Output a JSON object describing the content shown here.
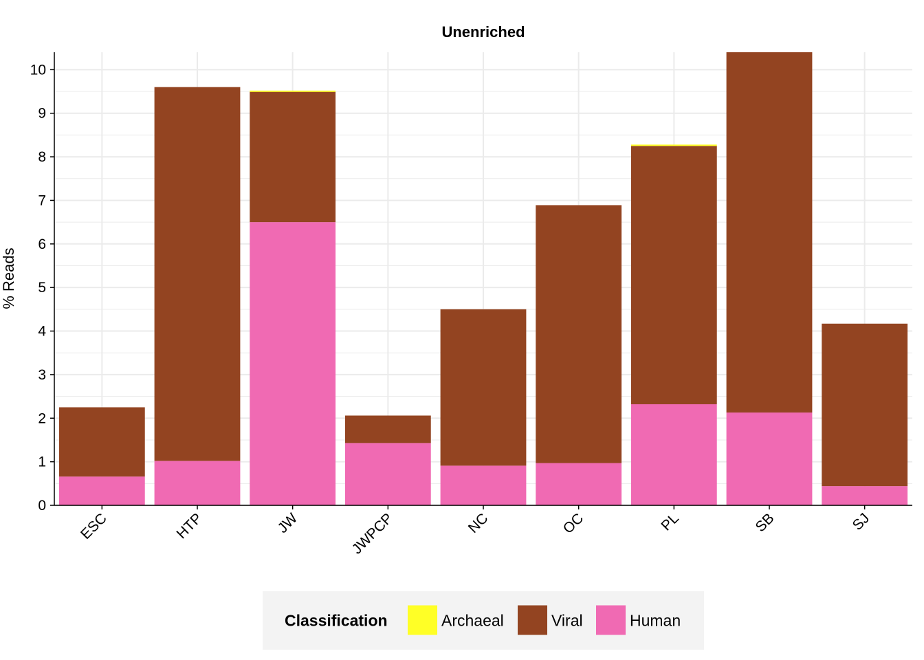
{
  "chart_data": {
    "type": "bar",
    "stacked": true,
    "title": "Unenriched",
    "xlabel": "",
    "ylabel": "% Reads",
    "ylim": [
      0,
      10.4
    ],
    "yticks": [
      0,
      1,
      2,
      3,
      4,
      5,
      6,
      7,
      8,
      9,
      10
    ],
    "categories": [
      "ESC",
      "HTP",
      "JW",
      "JWPCP",
      "NC",
      "OC",
      "PL",
      "SB",
      "SJ"
    ],
    "series": [
      {
        "name": "Human",
        "color": "#F06AB3",
        "values": [
          0.66,
          1.02,
          6.5,
          1.43,
          0.91,
          0.97,
          2.32,
          2.13,
          0.44
        ]
      },
      {
        "name": "Viral",
        "color": "#934421",
        "values": [
          1.59,
          8.58,
          2.99,
          0.63,
          3.59,
          5.92,
          5.93,
          8.27,
          3.73
        ]
      },
      {
        "name": "Archaeal",
        "color": "#FFFF26",
        "values": [
          0.0,
          0.0,
          0.03,
          0.0,
          0.0,
          0.0,
          0.03,
          0.0,
          0.0
        ]
      }
    ],
    "grid": true,
    "legend": {
      "title": "Classification",
      "position": "bottom",
      "order": [
        "Archaeal",
        "Viral",
        "Human"
      ]
    }
  }
}
